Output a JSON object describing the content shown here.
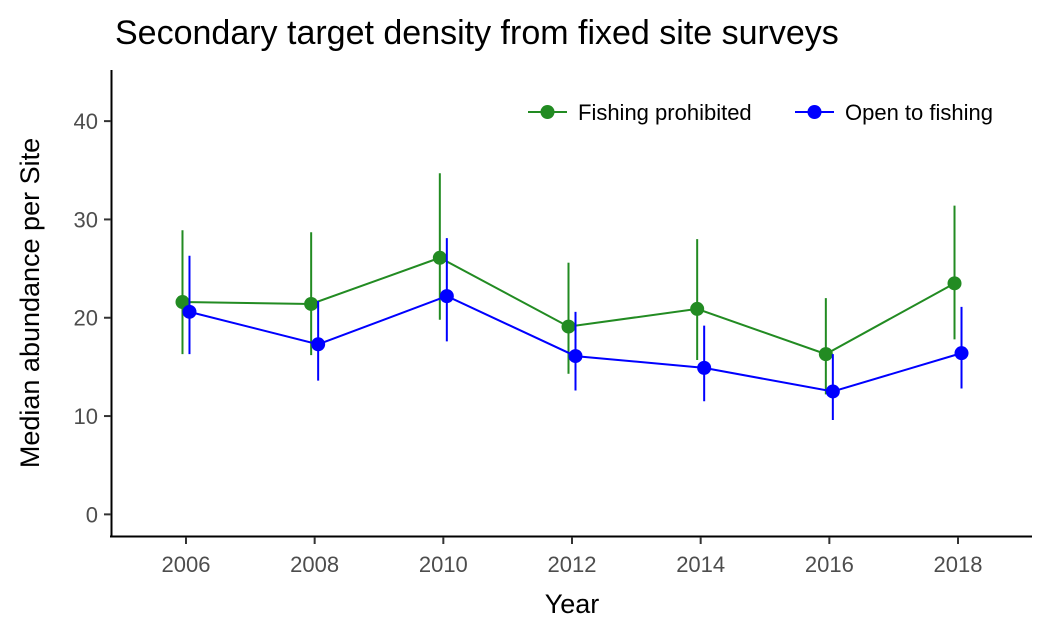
{
  "chart_data": {
    "type": "line",
    "title": "Secondary target density from fixed site surveys",
    "xlabel": "Year",
    "ylabel": "Median abundance per Site",
    "x": [
      2006,
      2008,
      2010,
      2012,
      2014,
      2016,
      2018
    ],
    "xticks": [
      2006,
      2008,
      2010,
      2012,
      2014,
      2016,
      2018
    ],
    "xtick_labels": [
      "2006",
      "2008",
      "2010",
      "2012",
      "2014",
      "2016",
      "2018"
    ],
    "yticks": [
      0,
      10,
      20,
      30,
      40
    ],
    "ytick_labels": [
      "0",
      "10",
      "20",
      "30",
      "40"
    ],
    "xlim": [
      2004.85,
      2019.15
    ],
    "ylim": [
      -2.2,
      45.2
    ],
    "grid": false,
    "legend_position": "top-right",
    "series": [
      {
        "name": "Fishing prohibited",
        "color": "#228B22",
        "values": [
          21.6,
          21.4,
          26.1,
          19.1,
          20.9,
          16.3,
          23.5
        ],
        "lower": [
          16.3,
          16.2,
          19.8,
          14.3,
          15.7,
          12.2,
          17.8
        ],
        "upper": [
          28.9,
          28.7,
          34.7,
          25.6,
          28.0,
          22.0,
          31.4
        ]
      },
      {
        "name": "Open to fishing",
        "color": "#0000FF",
        "values": [
          20.6,
          17.3,
          22.2,
          16.1,
          14.9,
          12.5,
          16.4
        ],
        "lower": [
          16.3,
          13.6,
          17.6,
          12.6,
          11.5,
          9.6,
          12.8
        ],
        "upper": [
          26.3,
          21.7,
          28.1,
          20.6,
          19.2,
          16.3,
          21.1
        ]
      }
    ]
  }
}
